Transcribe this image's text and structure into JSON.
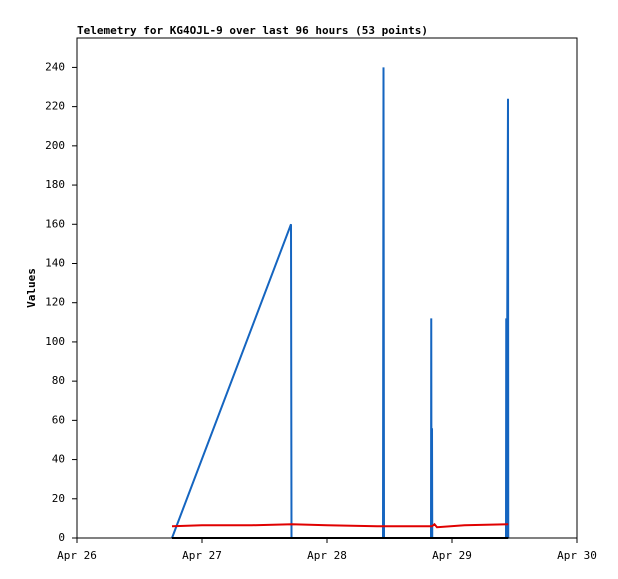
{
  "chart_data": {
    "type": "line",
    "title": "Telemetry for KG4OJL-9 over last 96 hours (53 points)",
    "y_label": "Values",
    "xlim": [
      0,
      4
    ],
    "xticks": [
      {
        "value": 0,
        "label": "Apr 26"
      },
      {
        "value": 1,
        "label": "Apr 27"
      },
      {
        "value": 2,
        "label": "Apr 28"
      },
      {
        "value": 3,
        "label": "Apr 29"
      },
      {
        "value": 4,
        "label": "Apr 30"
      }
    ],
    "ylim": [
      0,
      255
    ],
    "yticks": [
      0,
      20,
      40,
      60,
      80,
      100,
      120,
      140,
      160,
      180,
      200,
      220,
      240
    ],
    "grid": false,
    "series": [
      {
        "color": "#1565c0",
        "x": [
          0.76,
          1.712,
          1.716,
          2.448,
          2.452,
          2.456,
          2.832,
          2.834,
          2.836,
          2.84,
          2.842,
          3.432,
          3.434,
          3.436,
          3.448,
          3.45
        ],
        "values": [
          0,
          160,
          0,
          0,
          240,
          0,
          0,
          112,
          0,
          56,
          0,
          0,
          112,
          0,
          224,
          0
        ]
      },
      {
        "color": "#e00000",
        "x": [
          0.76,
          1.0,
          1.4,
          1.72,
          2.0,
          2.4,
          2.84,
          2.86,
          2.88,
          3.1,
          3.45
        ],
        "values": [
          6,
          6.5,
          6.5,
          7,
          6.5,
          6,
          6,
          7,
          5.5,
          6.5,
          7
        ]
      },
      {
        "color": "#000000",
        "x": [
          0.76,
          3.45
        ],
        "values": [
          0,
          0
        ]
      }
    ]
  }
}
